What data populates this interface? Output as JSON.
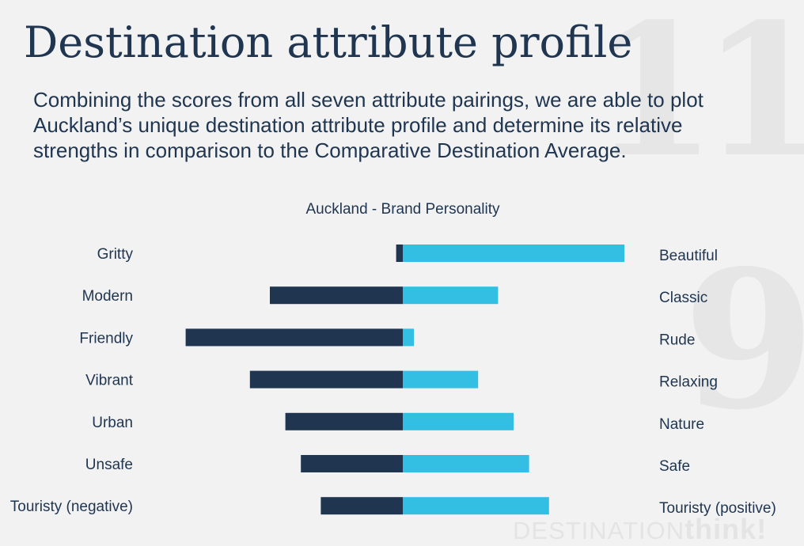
{
  "page": {
    "title": "Destination attribute profile",
    "intro": "Combining the scores from all seven attribute pairings, we are able to plot Auckland’s unique destination attribute profile and determine its relative strengths in comparison to the Comparative Destination Average.",
    "background_numbers": [
      "11",
      "9"
    ],
    "watermark": {
      "light": "DESTINATION",
      "bold": "think!"
    }
  },
  "chart_data": {
    "type": "bar",
    "orientation": "horizontal-diverging",
    "title": "Auckland - Brand Personality",
    "xlim": [
      -1,
      1
    ],
    "grid": false,
    "colors": {
      "negative": "#1f3550",
      "positive": "#33bfe3"
    },
    "rows": [
      {
        "left_label": "Gritty",
        "right_label": "Beautiful",
        "negative": -0.03,
        "positive": 1.0
      },
      {
        "left_label": "Modern",
        "right_label": "Classic",
        "negative": -0.6,
        "positive": 0.43
      },
      {
        "left_label": "Friendly",
        "right_label": "Rude",
        "negative": -0.98,
        "positive": 0.05
      },
      {
        "left_label": "Vibrant",
        "right_label": "Relaxing",
        "negative": -0.69,
        "positive": 0.34
      },
      {
        "left_label": "Urban",
        "right_label": "Nature",
        "negative": -0.53,
        "positive": 0.5
      },
      {
        "left_label": "Unsafe",
        "right_label": "Safe",
        "negative": -0.46,
        "positive": 0.57
      },
      {
        "left_label": "Touristy (negative)",
        "right_label": "Touristy (positive)",
        "negative": -0.37,
        "positive": 0.66
      }
    ]
  }
}
